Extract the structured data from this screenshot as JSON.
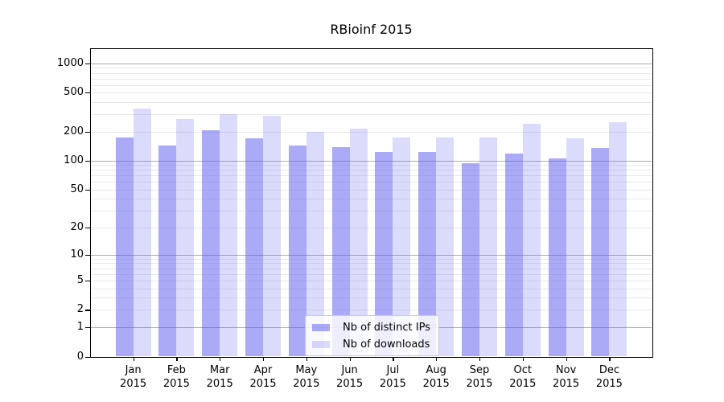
{
  "chart_data": {
    "type": "bar",
    "title": "RBioinf 2015",
    "scale": "log1p",
    "categories": [
      "Jan 2015",
      "Feb 2015",
      "Mar 2015",
      "Apr 2015",
      "May 2015",
      "Jun 2015",
      "Jul 2015",
      "Aug 2015",
      "Sep 2015",
      "Oct 2015",
      "Nov 2015",
      "Dec 2015"
    ],
    "series": [
      {
        "name": "Nb of distinct IPs",
        "color": "rgba(85,85,240,0.5)",
        "values": [
          173,
          142,
          207,
          169,
          144,
          138,
          122,
          123,
          95,
          119,
          106,
          135
        ]
      },
      {
        "name": "Nb of downloads",
        "color": "rgba(85,85,240,0.21)",
        "values": [
          347,
          270,
          302,
          290,
          198,
          214,
          175,
          172,
          174,
          240,
          170,
          247
        ]
      }
    ],
    "ylim": [
      0,
      1400
    ],
    "yticks": [
      0,
      1,
      2,
      5,
      10,
      20,
      50,
      100,
      200,
      500,
      1000
    ],
    "xlabel": "",
    "ylabel": "",
    "grid": true,
    "legend_position": "lower center"
  },
  "colors": {
    "bar_dark": "#aaaaf5",
    "bar_light": "#dbdbfb",
    "grid_major": "#adadad",
    "grid_minor": "#e8e8e8",
    "spine": "#000000",
    "background": "#ffffff"
  }
}
